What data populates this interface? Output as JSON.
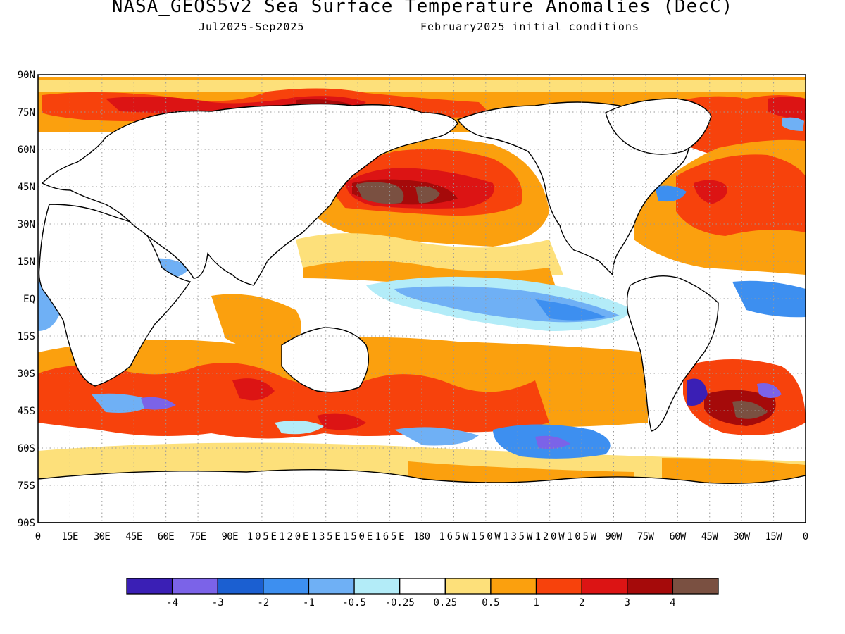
{
  "header": {
    "title": "NASA_GEOS5v2 Sea Surface Temperature Anomalies (DecC)",
    "period": "Jul2025-Sep2025",
    "init": "February2025 initial conditions"
  },
  "axes": {
    "lat_labels": [
      "90N",
      "75N",
      "60N",
      "45N",
      "30N",
      "15N",
      "EQ",
      "15S",
      "30S",
      "45S",
      "60S",
      "75S",
      "90S"
    ],
    "lon_labels": [
      "0",
      "15E",
      "30E",
      "45E",
      "60E",
      "75E",
      "90E",
      "105E",
      "120E",
      "135E",
      "150E",
      "165E",
      "180",
      "165W",
      "150W",
      "135W",
      "120W",
      "105W",
      "90W",
      "75W",
      "60W",
      "45W",
      "30W",
      "15W",
      "0"
    ],
    "lat_range": [
      -90,
      90
    ],
    "lon_range": [
      0,
      360
    ],
    "grid": "dotted"
  },
  "colorbar": {
    "colors": [
      "#3a1fb5",
      "#7b63e8",
      "#1b5fd1",
      "#3d8ff0",
      "#6fb0f5",
      "#b3ecf8",
      "#ffffff",
      "#fde07a",
      "#fba00e",
      "#f7420c",
      "#dc1414",
      "#a50a0a",
      "#7a5041"
    ],
    "labels": [
      "-4",
      "-3",
      "-2",
      "-1",
      "-0.5",
      "-0.25",
      "0.25",
      "0.5",
      "1",
      "2",
      "3",
      "4"
    ]
  }
}
